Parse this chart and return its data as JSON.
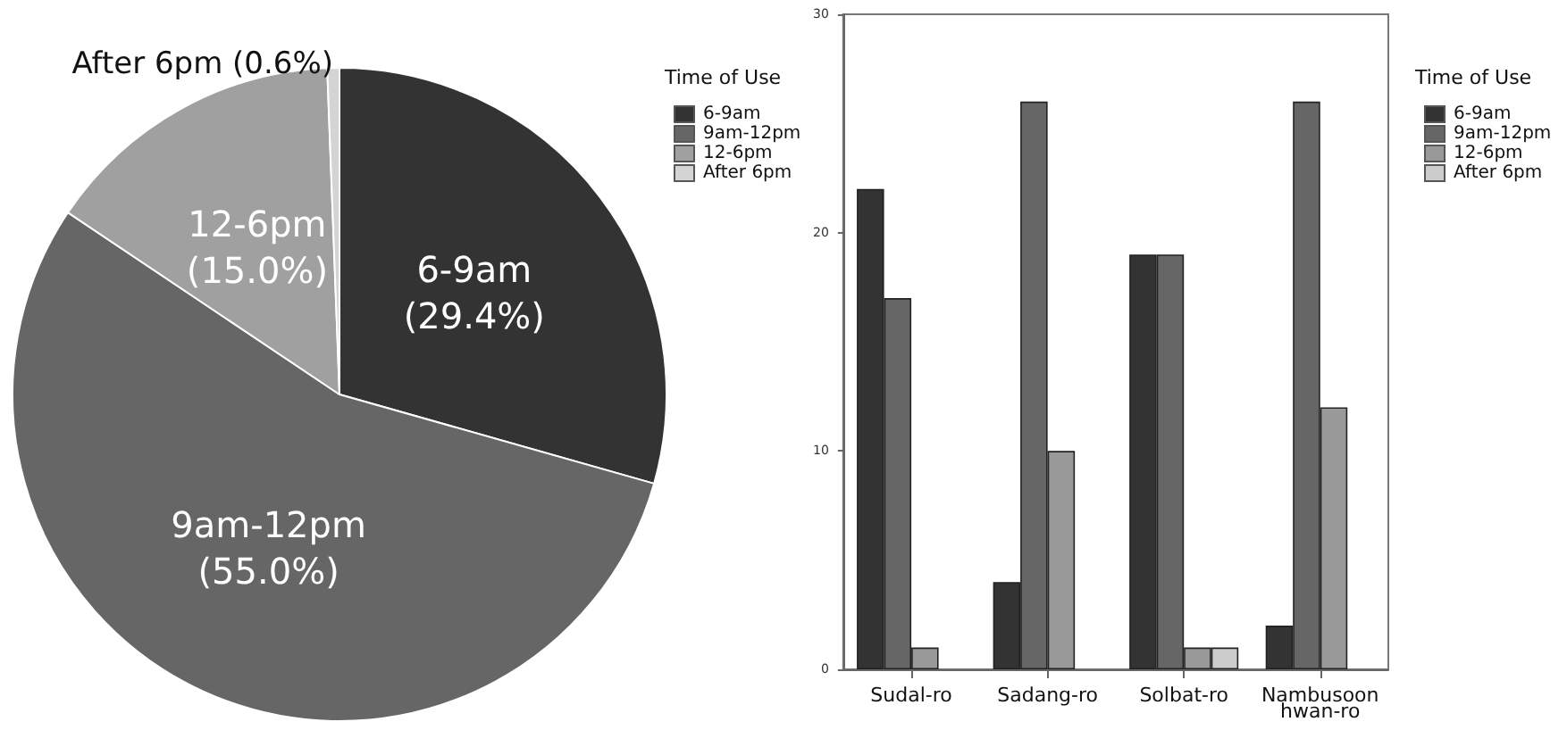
{
  "chart_data": [
    {
      "type": "pie",
      "legend_title": "Time of Use",
      "legend": "right",
      "categories": [
        "6-9am",
        "9am-12pm",
        "12-6pm",
        "After 6pm"
      ],
      "values": [
        29.4,
        55.0,
        15.0,
        0.6
      ],
      "value_labels": [
        "(29.4%)",
        "(55.0%)",
        "(15.0%)",
        "(0.6%)"
      ],
      "colors": [
        "#333333",
        "#666666",
        "#a0a0a0",
        "#d4d4d4"
      ]
    },
    {
      "type": "bar",
      "legend_title": "Time of Use",
      "legend": "right",
      "categories": [
        "Sudal-ro",
        "Sadang-ro",
        "Solbat-ro",
        "Nambusoon\nhwan-ro"
      ],
      "ylim": [
        0,
        30
      ],
      "yticks": [
        0,
        10,
        20,
        30
      ],
      "grid": false,
      "series": [
        {
          "name": "6-9am",
          "color": "#333333",
          "values": [
            22,
            4,
            19,
            2
          ]
        },
        {
          "name": "9am-12pm",
          "color": "#666666",
          "values": [
            17,
            26,
            19,
            26
          ]
        },
        {
          "name": "12-6pm",
          "color": "#999999",
          "values": [
            1,
            10,
            1,
            12
          ]
        },
        {
          "name": "After 6pm",
          "color": "#cccccc",
          "values": [
            null,
            null,
            1,
            null
          ]
        }
      ]
    }
  ]
}
